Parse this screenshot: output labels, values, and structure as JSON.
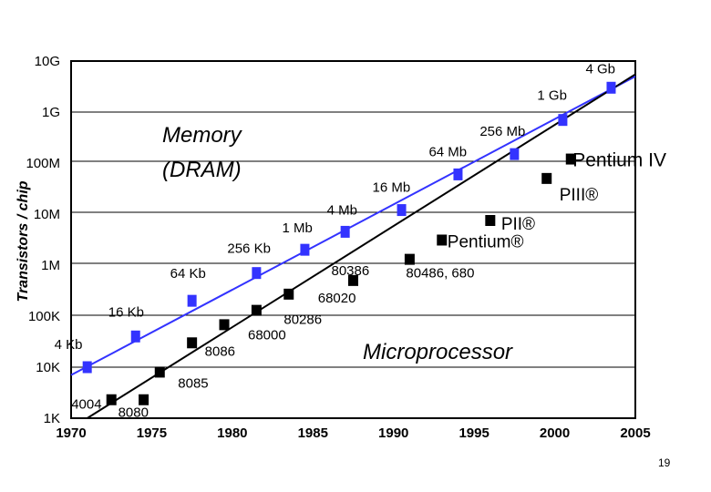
{
  "chart_data": {
    "type": "scatter",
    "ylabel": "Transistors / chip",
    "yscale": "log",
    "ylim": [
      1000,
      10000000000
    ],
    "xlim": [
      1970,
      2005
    ],
    "x_ticks": [
      "1970",
      "1975",
      "1980",
      "1985",
      "1990",
      "1995",
      "2000",
      "2005"
    ],
    "y_ticks": [
      "1K",
      "10K",
      "100K",
      "1M",
      "10M",
      "100M",
      "1G",
      "10G"
    ],
    "series": [
      {
        "name": "Memory (DRAM)",
        "color": "#3333ff",
        "marker": "square",
        "points": [
          {
            "x": 1971,
            "y": 10000,
            "label": "4 Kb"
          },
          {
            "x": 1974,
            "y": 40000,
            "label": "16 Kb"
          },
          {
            "x": 1977.5,
            "y": 200000,
            "label": "64 Kb"
          },
          {
            "x": 1981.5,
            "y": 700000,
            "label": "256 Kb"
          },
          {
            "x": 1984.5,
            "y": 2000000,
            "label": "1 Mb"
          },
          {
            "x": 1987,
            "y": 4500000,
            "label": "4 Mb"
          },
          {
            "x": 1990.5,
            "y": 12000000,
            "label": "16 Mb"
          },
          {
            "x": 1994,
            "y": 60000000,
            "label": "64 Mb"
          },
          {
            "x": 1997.5,
            "y": 150000000,
            "label": "256 Mb"
          },
          {
            "x": 2000.5,
            "y": 700000000,
            "label": "1 Gb"
          },
          {
            "x": 2003.5,
            "y": 3000000000,
            "label": "4 Gb"
          }
        ],
        "trend": [
          [
            1970,
            7000
          ],
          [
            2005,
            5000000000
          ]
        ]
      },
      {
        "name": "Microprocessor",
        "color": "#000000",
        "marker": "square",
        "points": [
          {
            "x": 1972.5,
            "y": 2300,
            "label": "4004"
          },
          {
            "x": 1974.5,
            "y": 2300,
            "label": "8080"
          },
          {
            "x": 1975.5,
            "y": 8000,
            "label": "8085"
          },
          {
            "x": 1977.5,
            "y": 30000,
            "label": "8086"
          },
          {
            "x": 1979.5,
            "y": 68000,
            "label": "68000"
          },
          {
            "x": 1981.5,
            "y": 130000,
            "label": "80286"
          },
          {
            "x": 1983.5,
            "y": 270000,
            "label": "68020"
          },
          {
            "x": 1987.5,
            "y": 500000,
            "label": "80386"
          },
          {
            "x": 1991,
            "y": 1300000,
            "label": "80486, 680"
          },
          {
            "x": 1993,
            "y": 3100000,
            "label": "Pentium®"
          },
          {
            "x": 1996,
            "y": 7500000,
            "label": "PII®"
          },
          {
            "x": 1999.5,
            "y": 50000000,
            "label": "PIII®"
          },
          {
            "x": 2001,
            "y": 120000000,
            "label": "Pentium IV"
          }
        ],
        "trend": [
          [
            1971,
            1000
          ],
          [
            2005,
            5500000000
          ]
        ]
      }
    ],
    "annotations": {
      "memory": [
        "Memory",
        "(DRAM)"
      ],
      "processor": "Microprocessor"
    }
  },
  "page_number": "19"
}
